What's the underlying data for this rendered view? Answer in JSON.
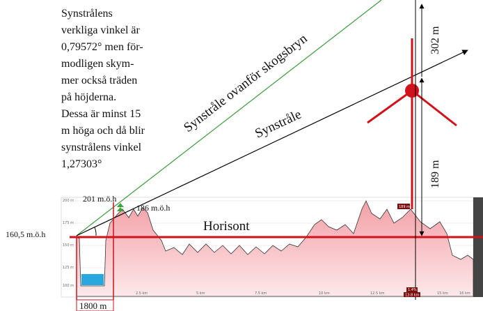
{
  "note": {
    "lines": [
      "Synstrålens",
      "verkliga vinkel är",
      "0,79572° men för-",
      "modligen skym-",
      "mer också träden",
      "på höjderna.",
      "Dessa är minst 15",
      "m höga och då blir",
      "synstrålens vinkel",
      "1,27303°"
    ]
  },
  "labels": {
    "sightline_above_forest": "Synstråle ovanför skogsbryn",
    "sightline": "Synstråle",
    "height_302": "302 m",
    "height_189": "189 m",
    "tree_height": "201 m.ö.h",
    "hill_height": "186 m.ö.h",
    "horizon": "Horisont",
    "base_height": "160,5 m.ö.h",
    "distance": "1800 m"
  },
  "profile": {
    "y_axis": [
      "200 m",
      "175 m",
      "150 m",
      "125 m",
      "100 m"
    ],
    "x_axis": [
      "2.5 km",
      "5 km",
      "7.5 km",
      "10 km",
      "12.5 km",
      "15 km",
      "16 km"
    ],
    "marker_height": "189 m",
    "marker_grade": "1.4%",
    "marker_distance": "13.8 km"
  }
}
